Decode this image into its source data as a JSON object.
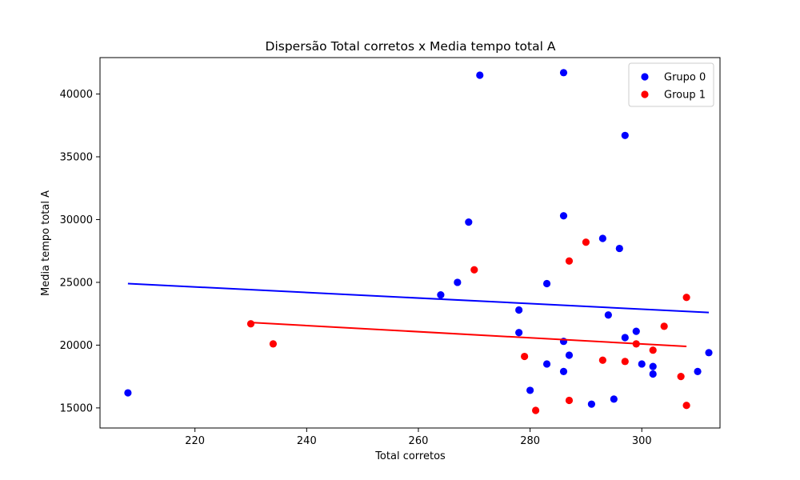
{
  "chart_data": {
    "type": "scatter",
    "title": "Dispersão Total corretos x Media tempo total A",
    "xlabel": "Total corretos",
    "ylabel": "Media tempo total A",
    "xlim": [
      203,
      314
    ],
    "ylim": [
      13400,
      42900
    ],
    "xticks": [
      220,
      240,
      260,
      280,
      300
    ],
    "yticks": [
      15000,
      20000,
      25000,
      30000,
      35000,
      40000
    ],
    "grid": false,
    "legend_position": "top-right",
    "series": [
      {
        "name": "Grupo 0",
        "color": "#0000ff",
        "points": [
          [
            208,
            16200
          ],
          [
            264,
            24000
          ],
          [
            267,
            25000
          ],
          [
            269,
            29800
          ],
          [
            271,
            41500
          ],
          [
            278,
            22800
          ],
          [
            278,
            21000
          ],
          [
            280,
            16400
          ],
          [
            283,
            24900
          ],
          [
            283,
            18500
          ],
          [
            286,
            41700
          ],
          [
            286,
            30300
          ],
          [
            286,
            20300
          ],
          [
            286,
            17900
          ],
          [
            287,
            19200
          ],
          [
            291,
            15300
          ],
          [
            293,
            28500
          ],
          [
            294,
            22400
          ],
          [
            295,
            15700
          ],
          [
            296,
            27700
          ],
          [
            297,
            36700
          ],
          [
            297,
            20600
          ],
          [
            299,
            21100
          ],
          [
            300,
            18500
          ],
          [
            302,
            18300
          ],
          [
            302,
            17700
          ],
          [
            310,
            17900
          ],
          [
            312,
            19400
          ]
        ],
        "trend": {
          "x": [
            208,
            312
          ],
          "y": [
            24900,
            22600
          ]
        }
      },
      {
        "name": "Group 1",
        "color": "#ff0000",
        "points": [
          [
            230,
            21700
          ],
          [
            234,
            20100
          ],
          [
            270,
            26000
          ],
          [
            279,
            19100
          ],
          [
            281,
            14800
          ],
          [
            287,
            26700
          ],
          [
            287,
            15600
          ],
          [
            290,
            28200
          ],
          [
            293,
            18800
          ],
          [
            297,
            18700
          ],
          [
            299,
            20100
          ],
          [
            302,
            19600
          ],
          [
            304,
            21500
          ],
          [
            307,
            17500
          ],
          [
            308,
            23800
          ],
          [
            308,
            15200
          ]
        ],
        "trend": {
          "x": [
            230,
            308
          ],
          "y": [
            21800,
            19900
          ]
        }
      }
    ]
  }
}
